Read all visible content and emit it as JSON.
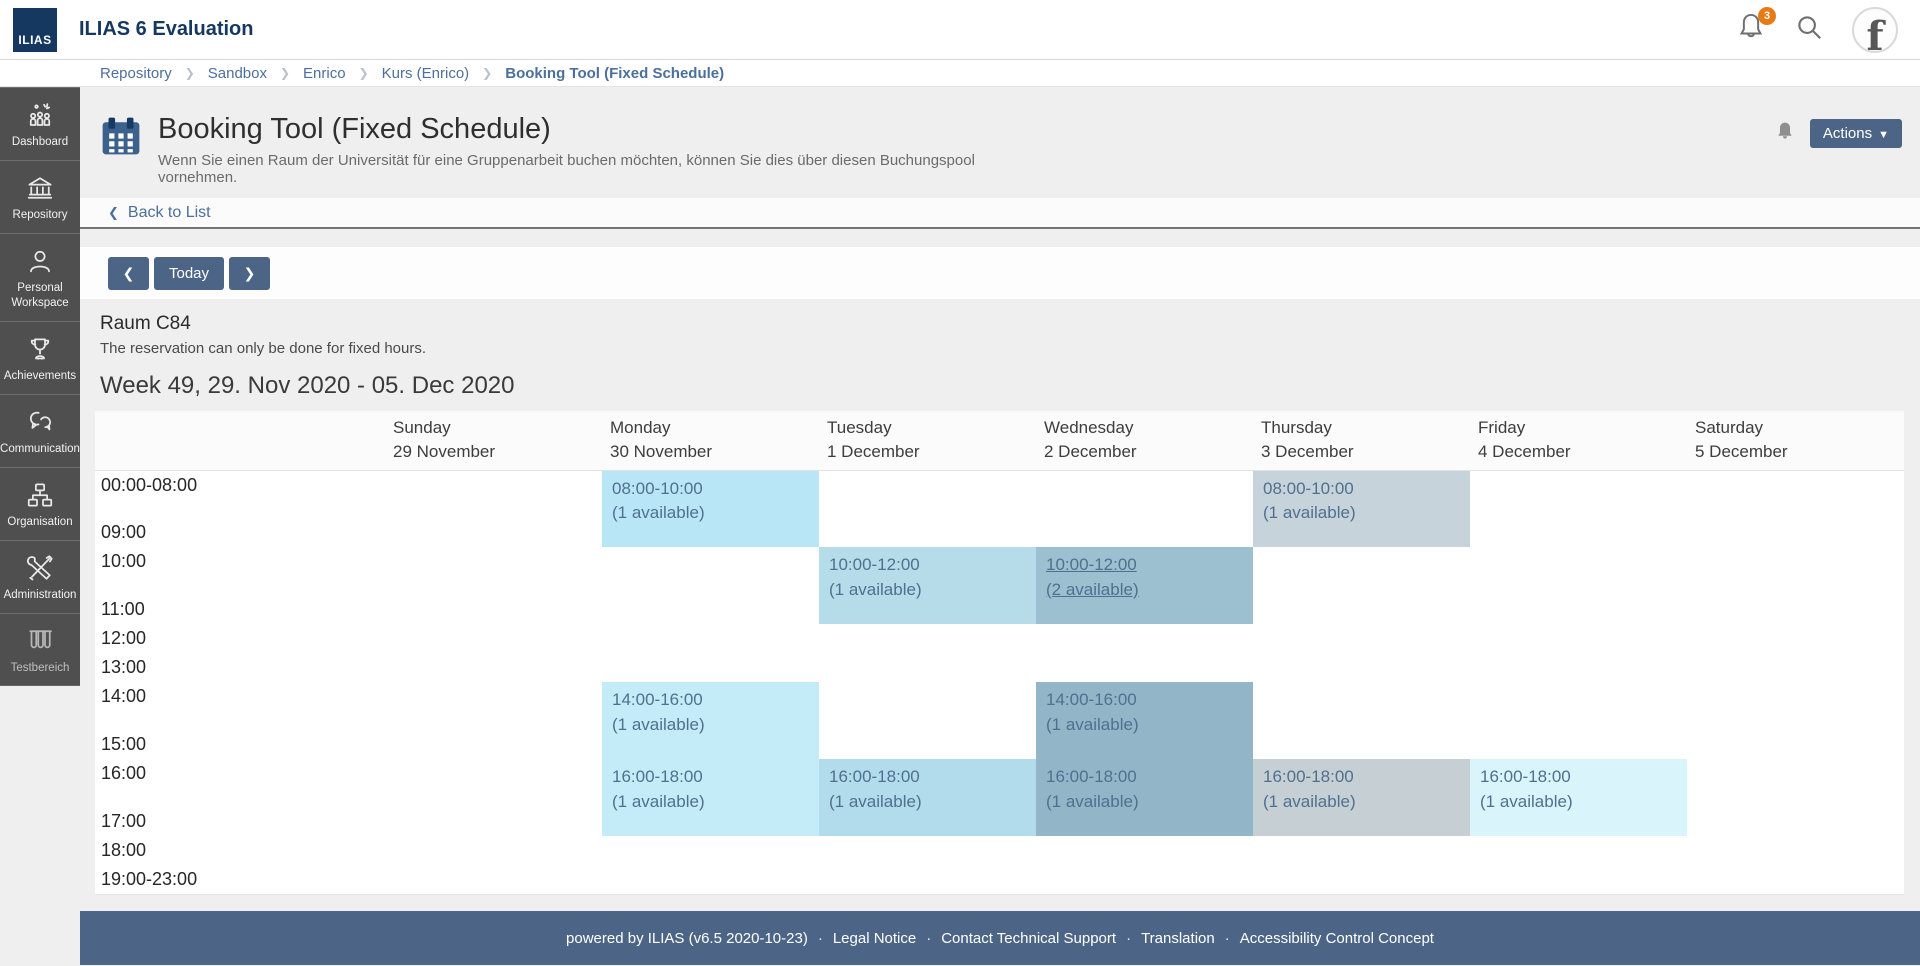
{
  "topbar": {
    "logo_text": "ILIAS",
    "title": "ILIAS 6 Evaluation",
    "notification_count": "3",
    "avatar_letter": "f"
  },
  "breadcrumb": {
    "items": [
      "Repository",
      "Sandbox",
      "Enrico",
      "Kurs (Enrico)",
      "Booking Tool (Fixed Schedule)"
    ]
  },
  "sidebar": {
    "items": [
      {
        "label": "Dashboard",
        "icon": "dashboard-icon"
      },
      {
        "label": "Repository",
        "icon": "repository-icon"
      },
      {
        "label": "Personal Workspace",
        "icon": "personal-workspace-icon"
      },
      {
        "label": "Achievements",
        "icon": "achievements-icon"
      },
      {
        "label": "Communication",
        "icon": "communication-icon"
      },
      {
        "label": "Organisation",
        "icon": "organisation-icon"
      },
      {
        "label": "Administration",
        "icon": "administration-icon"
      },
      {
        "label": "Testbereich",
        "icon": "testbereich-icon",
        "dimmed": true
      }
    ]
  },
  "page": {
    "title": "Booking Tool (Fixed Schedule)",
    "subtitle": "Wenn Sie einen Raum der Universität für eine Gruppenarbeit buchen möchten, können Sie dies über diesen Buchungspool vornehmen.",
    "actions_label": "Actions",
    "back_link": "Back to List",
    "prev_label": "❮",
    "today_label": "Today",
    "next_label": "❯"
  },
  "booking": {
    "room": "Raum C84",
    "room_note": "The reservation can only be done for fixed hours.",
    "week_title": "Week 49, 29. Nov 2020 - 05. Dec 2020"
  },
  "schedule": {
    "days": [
      {
        "name": "Sunday",
        "date": "29 November"
      },
      {
        "name": "Monday",
        "date": "30 November"
      },
      {
        "name": "Tuesday",
        "date": "1 December"
      },
      {
        "name": "Wednesday",
        "date": "2 December"
      },
      {
        "name": "Thursday",
        "date": "3 December"
      },
      {
        "name": "Friday",
        "date": "4 December"
      },
      {
        "name": "Saturday",
        "date": "5 December"
      }
    ],
    "time_rows": [
      "00:00-08:00",
      "09:00",
      "10:00",
      "11:00",
      "12:00",
      "13:00",
      "14:00",
      "15:00",
      "16:00",
      "17:00",
      "18:00",
      "19:00-23:00"
    ],
    "bookings": [
      {
        "row": 0,
        "day": 1,
        "time": "08:00-10:00",
        "availability": "(1 available)",
        "color": "#b9e6f6",
        "underline": false,
        "rowspan": 2
      },
      {
        "row": 0,
        "day": 4,
        "time": "08:00-10:00",
        "availability": "(1 available)",
        "color": "#c7d3da",
        "underline": false,
        "rowspan": 2
      },
      {
        "row": 2,
        "day": 2,
        "time": "10:00-12:00",
        "availability": "(1 available)",
        "color": "#b6dcea",
        "underline": false,
        "rowspan": 2
      },
      {
        "row": 2,
        "day": 3,
        "time": "10:00-12:00",
        "availability": "(2 available)",
        "color": "#9dc0d1",
        "underline": true,
        "rowspan": 2
      },
      {
        "row": 6,
        "day": 1,
        "time": "14:00-16:00",
        "availability": "(1 available)",
        "color": "#c4ebf8",
        "underline": false,
        "rowspan": 2
      },
      {
        "row": 6,
        "day": 3,
        "time": "14:00-16:00",
        "availability": "(1 available)",
        "color": "#93b5c8",
        "underline": false,
        "rowspan": 2
      },
      {
        "row": 8,
        "day": 1,
        "time": "16:00-18:00",
        "availability": "(1 available)",
        "color": "#c4ebf8",
        "underline": false,
        "rowspan": 2
      },
      {
        "row": 8,
        "day": 2,
        "time": "16:00-18:00",
        "availability": "(1 available)",
        "color": "#b2dcec",
        "underline": false,
        "rowspan": 2
      },
      {
        "row": 8,
        "day": 3,
        "time": "16:00-18:00",
        "availability": "(1 available)",
        "color": "#93b5c8",
        "underline": false,
        "rowspan": 2
      },
      {
        "row": 8,
        "day": 4,
        "time": "16:00-18:00",
        "availability": "(1 available)",
        "color": "#c6cfd4",
        "underline": false,
        "rowspan": 2
      },
      {
        "row": 8,
        "day": 5,
        "time": "16:00-18:00",
        "availability": "(1 available)",
        "color": "#d9f4fa",
        "underline": false,
        "rowspan": 2
      }
    ]
  },
  "footer": {
    "powered": "powered by ILIAS (v6.5 2020-10-23)",
    "separator": "·",
    "links": [
      "Legal Notice",
      "Contact Technical Support",
      "Translation",
      "Accessibility Control Concept"
    ]
  },
  "colors": {
    "primary": "#4c6586",
    "link": "#4c6f9c",
    "brand_navy": "#14385f",
    "badge_orange": "#e87a16",
    "sidebar_bg": "#4f4f4f",
    "page_bg": "#efefef"
  }
}
